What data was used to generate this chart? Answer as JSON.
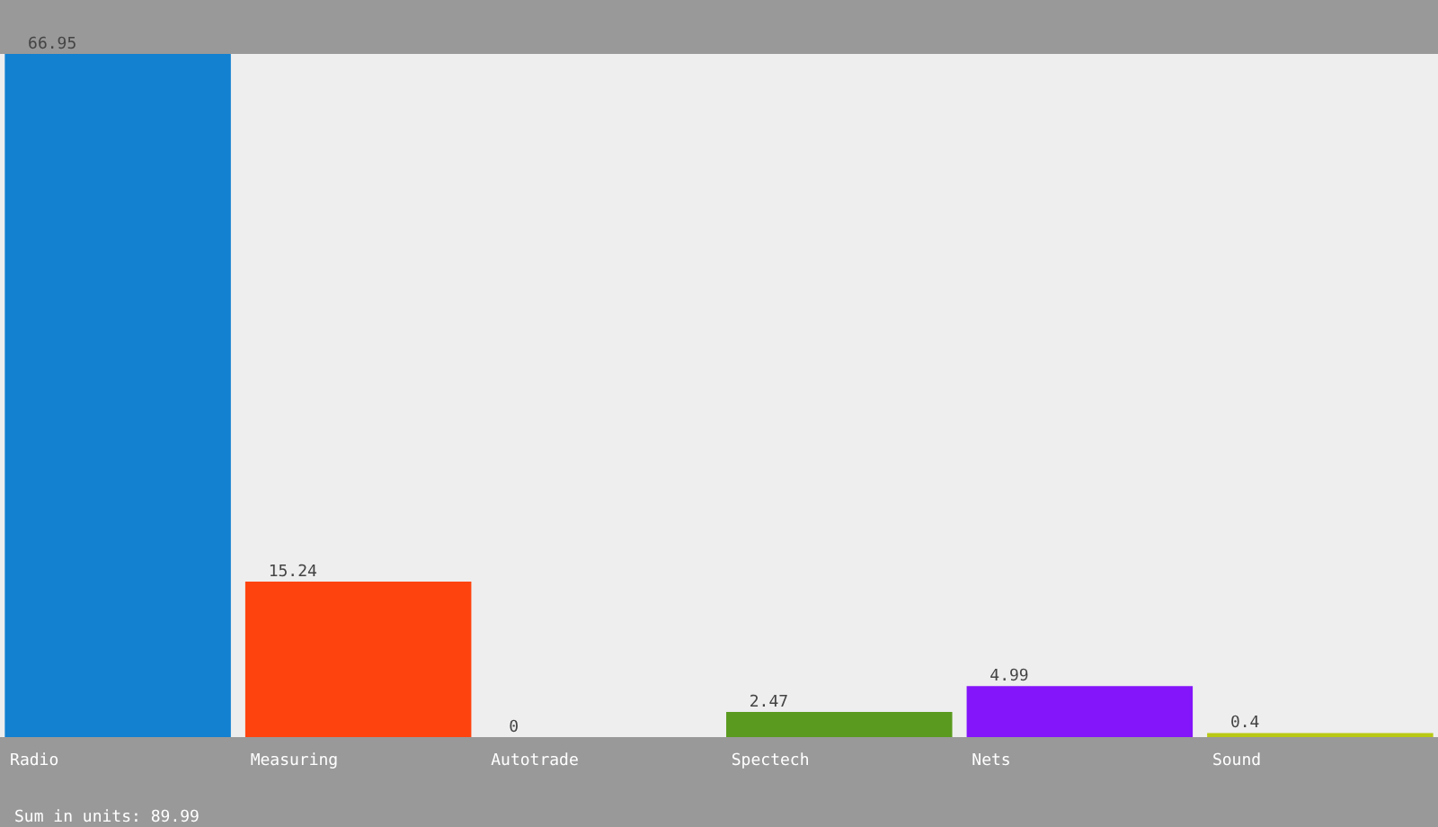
{
  "chart_data": {
    "type": "bar",
    "categories": [
      "Radio",
      "Measuring",
      "Autotrade",
      "Spectech",
      "Nets",
      "Sound"
    ],
    "values": [
      66.95,
      15.24,
      0,
      2.47,
      4.99,
      0.4
    ],
    "colors": [
      "#1380d0",
      "#ff430f",
      "#555555",
      "#5a9a1e",
      "#8414fa",
      "#b8c814"
    ],
    "data_labels": true,
    "annotations": [
      "Sum in units: 89.99"
    ]
  }
}
